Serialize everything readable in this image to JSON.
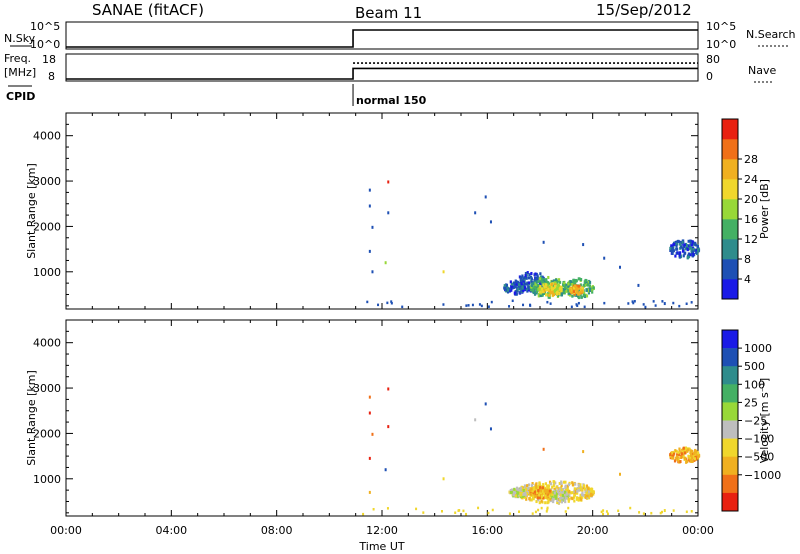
{
  "header": {
    "title": "SANAE (fitACF)",
    "beam": "Beam 11",
    "date": "15/Sep/2012"
  },
  "nsky_panel": {
    "left_label": "N.Sky",
    "left_ticks": [
      "10^5",
      "10^0"
    ],
    "right_ticks": [
      "10^5",
      "10^0"
    ],
    "right_label": "N.Search",
    "data_start_hour": 10.9
  },
  "freq_panel": {
    "left_label_1": "Freq.",
    "left_label_2": "[MHz]",
    "left_ticks": [
      "18",
      "8"
    ],
    "right_ticks": [
      "80",
      "0"
    ],
    "right_label": "Nave",
    "freq_level_mhz": 12.8,
    "nave_level": 58,
    "data_start_hour": 10.9
  },
  "cpid": {
    "label": "CPID",
    "mode": "normal 150",
    "start_hour": 10.9
  },
  "chart_data": [
    {
      "type": "heatmap",
      "name": "power",
      "ylabel": "Slant Range [km]",
      "ylim": [
        180,
        4500
      ],
      "yticks": [
        1000,
        2000,
        3000,
        4000
      ],
      "xlim": [
        0,
        24
      ],
      "xticks": [
        "00:00",
        "04:00",
        "08:00",
        "12:00",
        "16:00",
        "20:00",
        "00:00"
      ],
      "colorbar": {
        "label": "Power [dB]",
        "ticks": [
          "4",
          "8",
          "12",
          "16",
          "20",
          "24",
          "28"
        ],
        "colors": [
          "#1a1ae6",
          "#1e50b4",
          "#2f8c8c",
          "#44b064",
          "#98d838",
          "#f0d72c",
          "#f0b020",
          "#f07018",
          "#e82010"
        ]
      },
      "blobs": [
        {
          "t0": 17.1,
          "t1": 18.2,
          "r0": 560,
          "r1": 1000,
          "level": 1
        },
        {
          "t0": 17.6,
          "t1": 19.0,
          "r0": 420,
          "r1": 880,
          "level": 3
        },
        {
          "t0": 17.9,
          "t1": 18.8,
          "r0": 470,
          "r1": 750,
          "level": 5
        },
        {
          "t0": 18.9,
          "t1": 20.0,
          "r0": 430,
          "r1": 850,
          "level": 3
        },
        {
          "t0": 19.1,
          "t1": 19.6,
          "r0": 500,
          "r1": 700,
          "level": 6
        },
        {
          "t0": 16.6,
          "t1": 17.4,
          "r0": 500,
          "r1": 800,
          "level": 1
        },
        {
          "t0": 22.9,
          "t1": 24.0,
          "r0": 1300,
          "r1": 1700,
          "level": 1
        }
      ],
      "scatter": [
        {
          "t": 11.5,
          "r": 2800,
          "level": 1
        },
        {
          "t": 11.5,
          "r": 2450,
          "level": 1
        },
        {
          "t": 11.5,
          "r": 1450,
          "level": 1
        },
        {
          "t": 11.6,
          "r": 1980,
          "level": 1
        },
        {
          "t": 11.6,
          "r": 1000,
          "level": 1
        },
        {
          "t": 12.2,
          "r": 2980,
          "level": 8
        },
        {
          "t": 12.2,
          "r": 2300,
          "level": 1
        },
        {
          "t": 12.1,
          "r": 1200,
          "level": 4
        },
        {
          "t": 15.5,
          "r": 2300,
          "level": 1
        },
        {
          "t": 15.9,
          "r": 2650,
          "level": 1
        },
        {
          "t": 16.1,
          "r": 2100,
          "level": 1
        },
        {
          "t": 21.0,
          "r": 1100,
          "level": 1
        },
        {
          "t": 20.4,
          "r": 1300,
          "level": 1
        },
        {
          "t": 21.7,
          "r": 700,
          "level": 1
        },
        {
          "t": 14.3,
          "r": 1000,
          "level": 5
        },
        {
          "t": 19.6,
          "r": 1600,
          "level": 1
        },
        {
          "t": 18.1,
          "r": 1650,
          "level": 1
        },
        {
          "t": 22.7,
          "r": 300,
          "level": 1
        }
      ]
    },
    {
      "type": "heatmap",
      "name": "velocity",
      "ylabel": "Slant Range [km]",
      "ylim": [
        180,
        4500
      ],
      "yticks": [
        1000,
        2000,
        3000,
        4000
      ],
      "xlim": [
        0,
        24
      ],
      "xticks": [
        "00:00",
        "04:00",
        "08:00",
        "12:00",
        "16:00",
        "20:00",
        "00:00"
      ],
      "xlabel": "Time UT",
      "colorbar": {
        "label": "Velocity [m s⁻¹]",
        "ticks": [
          "1000",
          "500",
          "100",
          "25",
          "−25",
          "−100",
          "−500",
          "−1000"
        ],
        "colors": [
          "#1a1ae6",
          "#1e50b4",
          "#2f8c8c",
          "#44b064",
          "#98d838",
          "#bebebe",
          "#f0d72c",
          "#f0b020",
          "#f07018",
          "#e82010"
        ]
      },
      "blobs": [
        {
          "t0": 17.1,
          "t1": 20.0,
          "r0": 450,
          "r1": 950,
          "level": 6
        },
        {
          "t0": 17.5,
          "t1": 18.4,
          "r0": 560,
          "r1": 820,
          "level": 7
        },
        {
          "t0": 18.4,
          "t1": 19.0,
          "r0": 480,
          "r1": 760,
          "level": 5
        },
        {
          "t0": 16.8,
          "t1": 17.5,
          "r0": 600,
          "r1": 800,
          "level": 5
        },
        {
          "t0": 22.9,
          "t1": 24.0,
          "r0": 1350,
          "r1": 1680,
          "level": 7
        }
      ],
      "scatter": [
        {
          "t": 11.5,
          "r": 2800,
          "level": 8
        },
        {
          "t": 11.5,
          "r": 2450,
          "level": 9
        },
        {
          "t": 11.5,
          "r": 1450,
          "level": 9
        },
        {
          "t": 11.6,
          "r": 1980,
          "level": 8
        },
        {
          "t": 12.2,
          "r": 2980,
          "level": 9
        },
        {
          "t": 12.2,
          "r": 2150,
          "level": 9
        },
        {
          "t": 12.1,
          "r": 1200,
          "level": 1
        },
        {
          "t": 15.5,
          "r": 2300,
          "level": 5
        },
        {
          "t": 15.9,
          "r": 2650,
          "level": 1
        },
        {
          "t": 16.1,
          "r": 2100,
          "level": 1
        },
        {
          "t": 18.1,
          "r": 1650,
          "level": 8
        },
        {
          "t": 21.0,
          "r": 1100,
          "level": 7
        },
        {
          "t": 14.3,
          "r": 1000,
          "level": 6
        },
        {
          "t": 11.5,
          "r": 700,
          "level": 7
        },
        {
          "t": 19.6,
          "r": 1600,
          "level": 7
        },
        {
          "t": 22.7,
          "r": 300,
          "level": 6
        }
      ]
    }
  ]
}
